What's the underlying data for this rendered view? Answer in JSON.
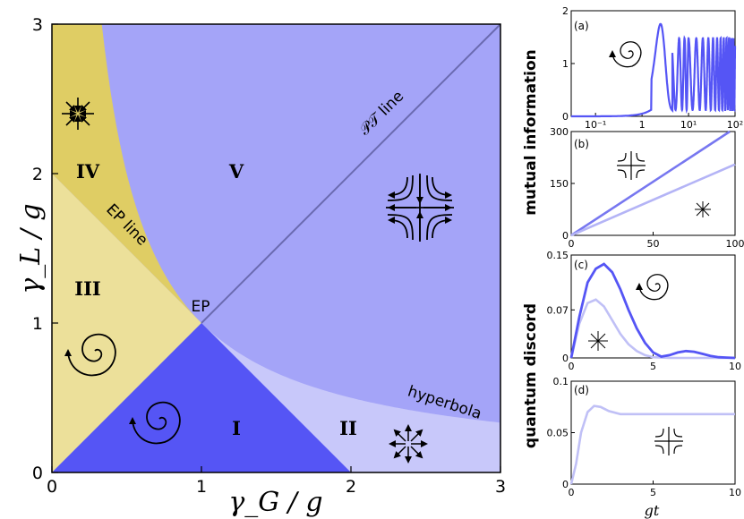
{
  "chart_data": [
    {
      "type": "area",
      "panel": "main",
      "xlabel": "γ_G / g",
      "ylabel": "γ_L / g",
      "xlim": [
        0,
        3
      ],
      "ylim": [
        0,
        3
      ],
      "xticks": [
        "0",
        "1",
        "2",
        "3"
      ],
      "yticks": [
        "0",
        "1",
        "2",
        "3"
      ],
      "regions": [
        {
          "label": "I",
          "x": 1.25,
          "y": 0.35,
          "color": "#5555f5"
        },
        {
          "label": "II",
          "x": 2.0,
          "y": 0.35,
          "color": "#c8c8fa"
        },
        {
          "label": "III",
          "x": 0.25,
          "y": 1.25,
          "color": "#ece09a"
        },
        {
          "label": "IV",
          "x": 0.25,
          "y": 2.05,
          "color": "#dfcd64"
        },
        {
          "label": "V",
          "x": 1.25,
          "y": 2.05,
          "color": "#a4a4f8"
        }
      ],
      "lines": {
        "pt_line": "𝒫𝒯 line",
        "ep_line": "EP line",
        "hyperbola": "hyperbola",
        "ep_point": "EP"
      },
      "boundaries": {
        "ep_line": "γ_L = 2 − γ_G",
        "pt_line": "γ_L = γ_G",
        "hyperbola": "γ_L · γ_G = 1"
      }
    },
    {
      "type": "line",
      "panel": "(a)",
      "ylabel": "mutual information",
      "xscale": "log",
      "xlim": [
        0.03,
        100
      ],
      "ylim": [
        0,
        2
      ],
      "xticks": [
        "10⁻¹",
        "1",
        "10¹",
        "10²"
      ],
      "yticks": [
        "0",
        "1",
        "2"
      ],
      "series": [
        {
          "color": "#5555f5",
          "note": "peak ≈ 1.75 near gt ≈ 2.5, then oscillates between ≈ 0.1 and 1.5"
        }
      ]
    },
    {
      "type": "line",
      "panel": "(b)",
      "xlim": [
        0,
        100
      ],
      "ylim": [
        0,
        300
      ],
      "xticks": [
        "0",
        "50",
        "100"
      ],
      "yticks": [
        "0",
        "150",
        "300"
      ],
      "series": [
        {
          "color": "#7777f0",
          "x": [
            0,
            100
          ],
          "y": [
            0,
            310
          ]
        },
        {
          "color": "#b4b4f6",
          "x": [
            0,
            100
          ],
          "y": [
            0,
            205
          ]
        }
      ]
    },
    {
      "type": "line",
      "panel": "(c)",
      "ylabel": "quantum discord",
      "xlim": [
        0,
        10
      ],
      "ylim": [
        0,
        0.15
      ],
      "xticks": [
        "0",
        "5",
        "10"
      ],
      "yticks": [
        "0",
        "0.07",
        "0.15"
      ],
      "series": [
        {
          "color": "#5555f5",
          "x": [
            0,
            0.5,
            1,
            1.5,
            2,
            2.5,
            3,
            3.5,
            4,
            4.5,
            5,
            5.5,
            6,
            6.5,
            7,
            7.5,
            8,
            8.5,
            9,
            9.5,
            10
          ],
          "y": [
            0,
            0.06,
            0.11,
            0.13,
            0.137,
            0.125,
            0.1,
            0.07,
            0.043,
            0.022,
            0.008,
            0.002,
            0.004,
            0.008,
            0.01,
            0.009,
            0.006,
            0.003,
            0.001,
            0.0005,
            0
          ]
        },
        {
          "color": "#c0c0f6",
          "x": [
            0,
            0.5,
            1,
            1.5,
            2,
            2.5,
            3,
            3.5,
            4,
            4.5,
            5,
            5.5,
            6,
            7,
            8,
            10
          ],
          "y": [
            0,
            0.05,
            0.08,
            0.085,
            0.075,
            0.055,
            0.035,
            0.02,
            0.01,
            0.004,
            0.001,
            0.0005,
            0,
            0,
            0,
            0
          ]
        }
      ]
    },
    {
      "type": "line",
      "panel": "(d)",
      "xlabel": "gt",
      "xlim": [
        0,
        10
      ],
      "ylim": [
        0,
        0.1
      ],
      "xticks": [
        "0",
        "5",
        "10"
      ],
      "yticks": [
        "0",
        "0.05",
        "0.1"
      ],
      "series": [
        {
          "color": "#c0c0f6",
          "x": [
            0,
            0.3,
            0.6,
            1,
            1.4,
            1.8,
            2.3,
            3,
            4,
            5,
            6,
            7,
            8,
            9,
            10
          ],
          "y": [
            0,
            0.02,
            0.05,
            0.07,
            0.076,
            0.075,
            0.071,
            0.068,
            0.068,
            0.068,
            0.068,
            0.068,
            0.068,
            0.068,
            0.068
          ]
        }
      ]
    }
  ]
}
